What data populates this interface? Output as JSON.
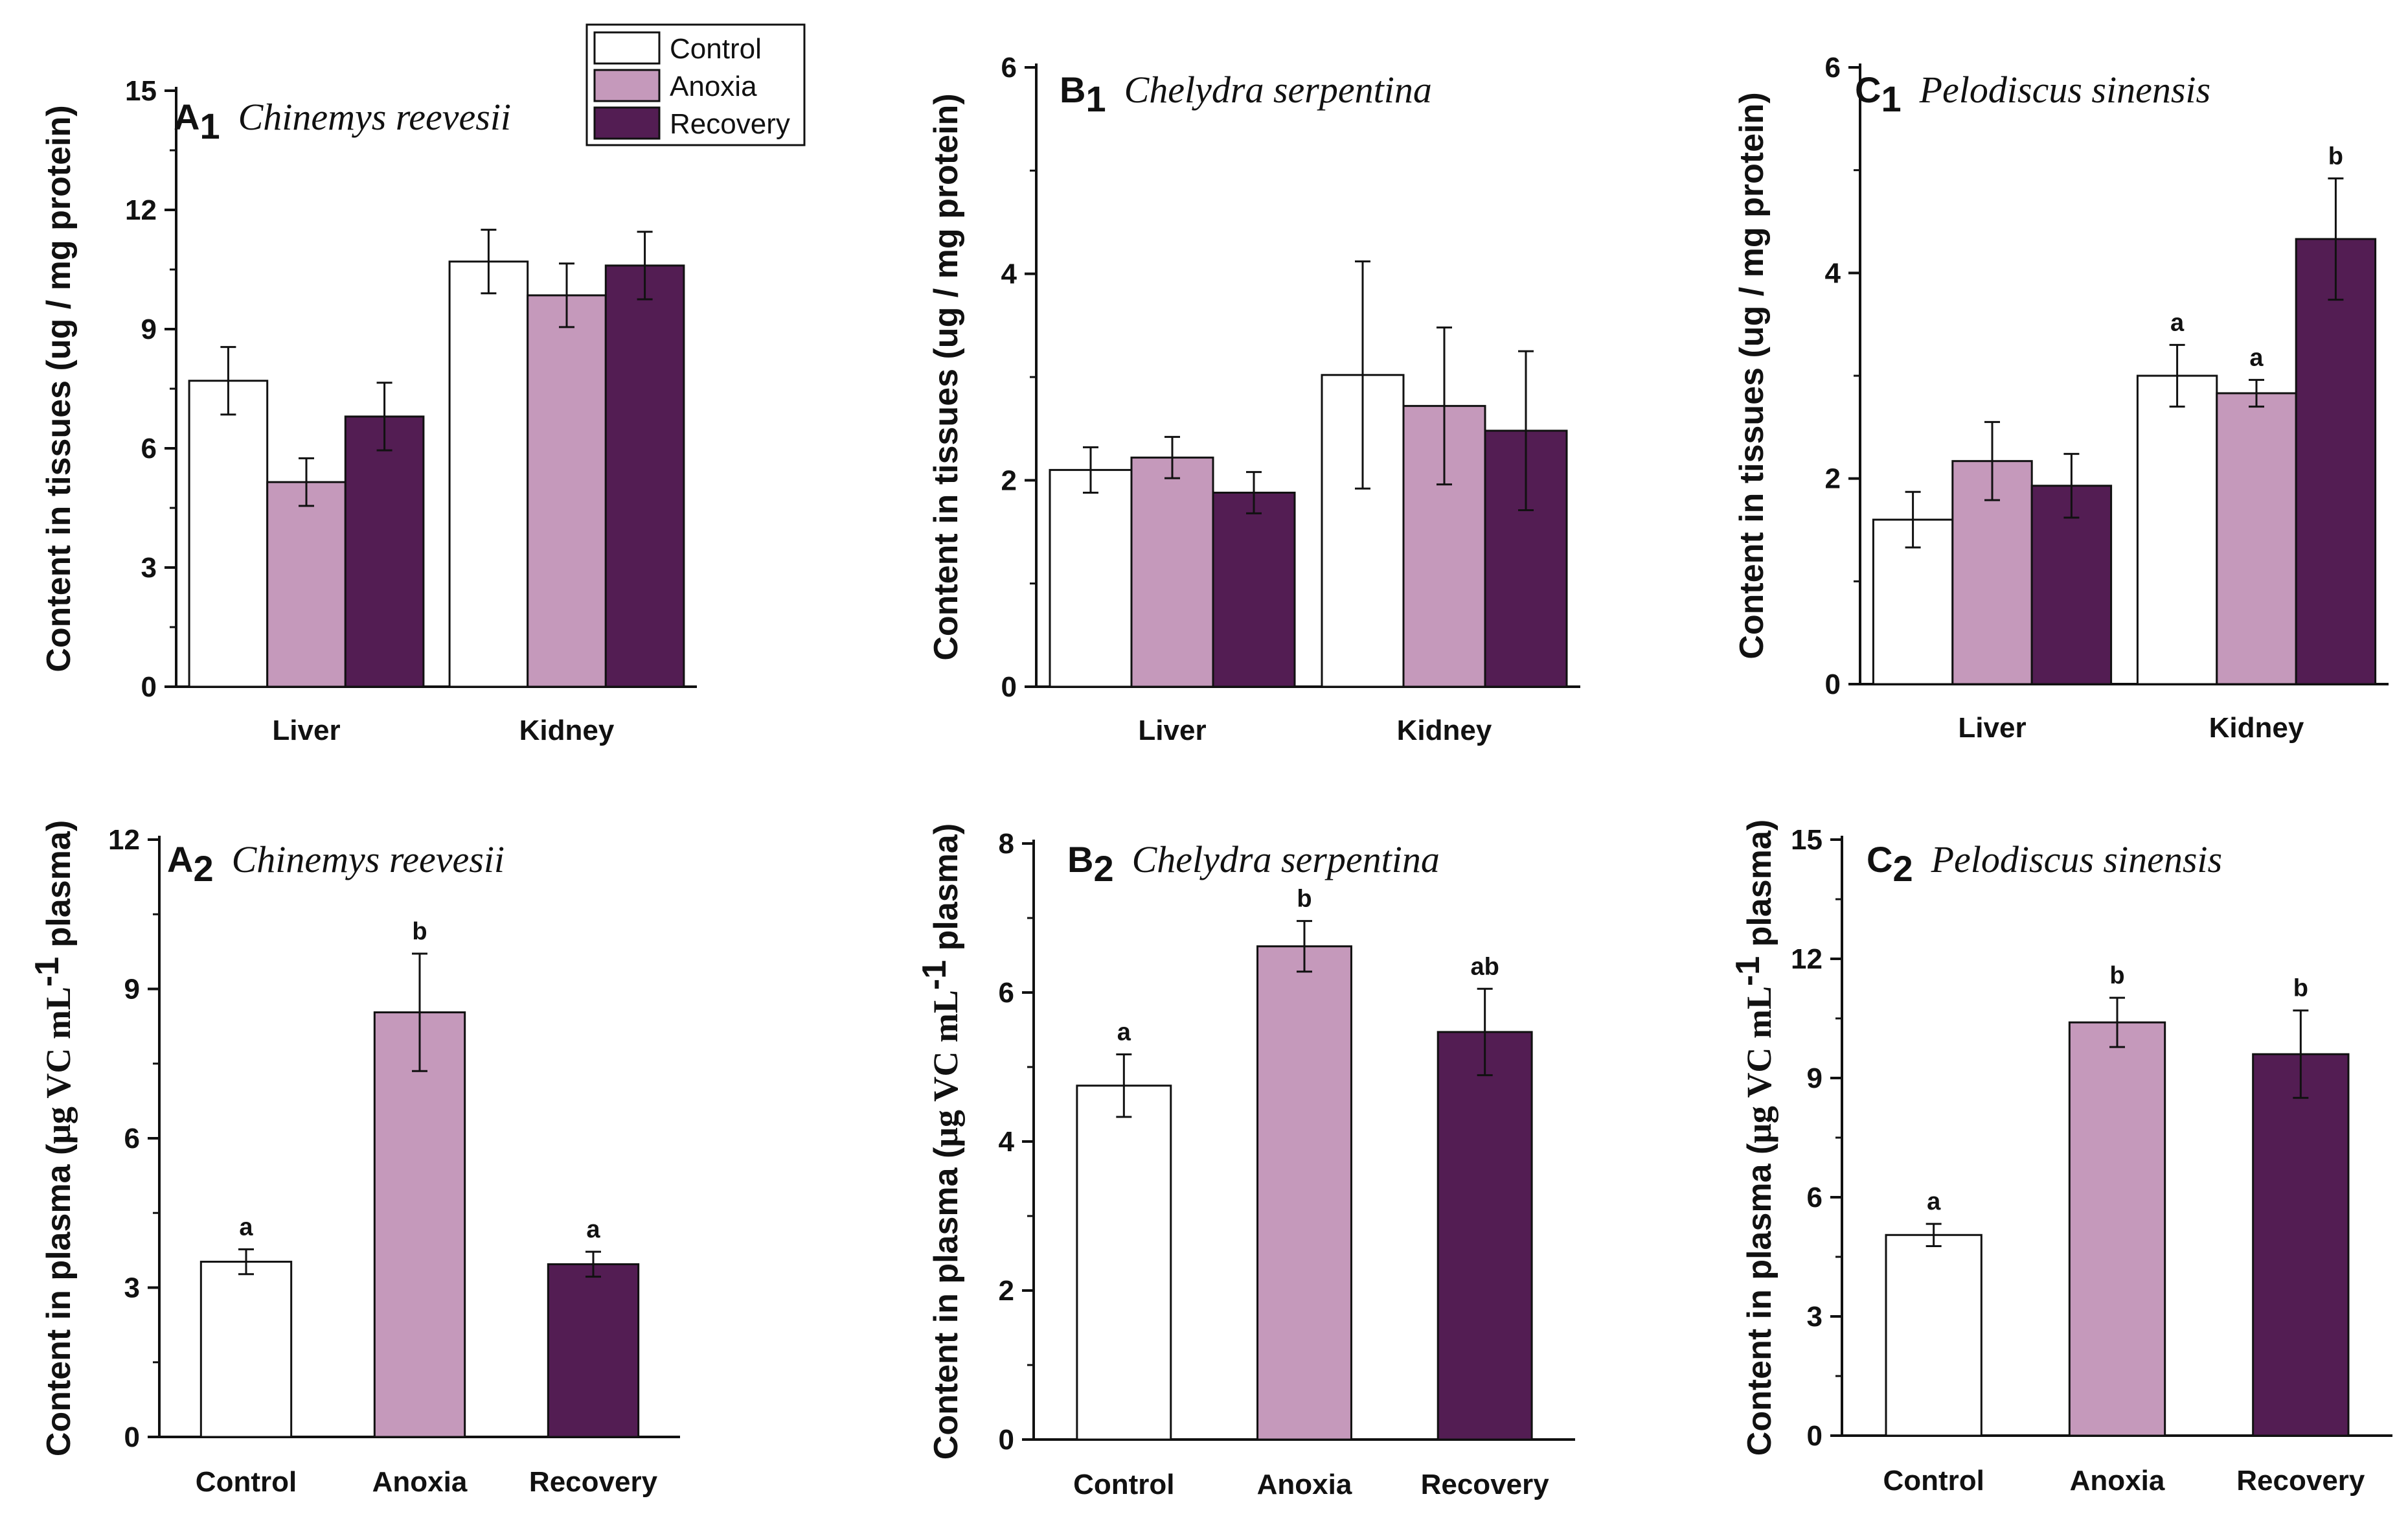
{
  "colors": {
    "control": "#ffffff",
    "anoxia": "#c599bb",
    "recovery": "#531d53",
    "axis": "#111111"
  },
  "legend": {
    "items": [
      {
        "label": "Control",
        "color": "#ffffff"
      },
      {
        "label": "Anoxia",
        "color": "#c599bb"
      },
      {
        "label": "Recovery",
        "color": "#531d53"
      }
    ]
  },
  "chart_data": [
    {
      "id": "A1",
      "type": "bar",
      "panel": "A",
      "sub": "1",
      "species": "Chinemys reevesii",
      "ylabel": "Content in tissues (ug / mg protein)",
      "ylim": [
        0,
        15
      ],
      "yticks": [
        0,
        3,
        6,
        9,
        12,
        15
      ],
      "categories": [
        "Liver",
        "Kidney"
      ],
      "series": [
        {
          "name": "Control",
          "values": [
            7.7,
            10.7
          ],
          "errors": [
            0.85,
            0.8
          ],
          "sig": [
            "",
            ""
          ]
        },
        {
          "name": "Anoxia",
          "values": [
            5.15,
            9.85
          ],
          "errors": [
            0.6,
            0.8
          ],
          "sig": [
            "",
            ""
          ]
        },
        {
          "name": "Recovery",
          "values": [
            6.8,
            10.6
          ],
          "errors": [
            0.85,
            0.85
          ],
          "sig": [
            "",
            ""
          ]
        }
      ]
    },
    {
      "id": "B1",
      "type": "bar",
      "panel": "B",
      "sub": "1",
      "species": "Chelydra serpentina",
      "ylabel": "Content in tissues (ug / mg protein)",
      "ylim": [
        0,
        6
      ],
      "yticks": [
        0,
        2,
        4,
        6
      ],
      "categories": [
        "Liver",
        "Kidney"
      ],
      "series": [
        {
          "name": "Control",
          "values": [
            2.1,
            3.02
          ],
          "errors": [
            0.22,
            1.1
          ],
          "sig": [
            "",
            ""
          ]
        },
        {
          "name": "Anoxia",
          "values": [
            2.22,
            2.72
          ],
          "errors": [
            0.2,
            0.76
          ],
          "sig": [
            "",
            ""
          ]
        },
        {
          "name": "Recovery",
          "values": [
            1.88,
            2.48
          ],
          "errors": [
            0.2,
            0.77
          ],
          "sig": [
            "",
            ""
          ]
        }
      ]
    },
    {
      "id": "C1",
      "type": "bar",
      "panel": "C",
      "sub": "1",
      "species": "Pelodiscus sinensis",
      "ylabel": "Content in tissues (ug / mg protein)",
      "ylim": [
        0,
        6
      ],
      "yticks": [
        0,
        2,
        4,
        6
      ],
      "categories": [
        "Liver",
        "Kidney"
      ],
      "series": [
        {
          "name": "Control",
          "values": [
            1.6,
            3.0
          ],
          "errors": [
            0.27,
            0.3
          ],
          "sig": [
            "",
            "a"
          ]
        },
        {
          "name": "Anoxia",
          "values": [
            2.17,
            2.83
          ],
          "errors": [
            0.38,
            0.13
          ],
          "sig": [
            "",
            "a"
          ]
        },
        {
          "name": "Recovery",
          "values": [
            1.93,
            4.33
          ],
          "errors": [
            0.31,
            0.59
          ],
          "sig": [
            "",
            "b"
          ]
        }
      ]
    },
    {
      "id": "A2",
      "type": "bar",
      "panel": "A",
      "sub": "2",
      "species": "Chinemys reevesii",
      "ylabel_main": "Content in plasma (",
      "ylabel_unit": "μg VC mL",
      "ylabel_sup": "-1",
      "ylabel_end": " plasma)",
      "ylim": [
        0,
        12
      ],
      "yticks": [
        0,
        3,
        6,
        9,
        12
      ],
      "categories": [
        "Control",
        "Anoxia",
        "Recovery"
      ],
      "values": [
        3.52,
        8.53,
        3.47
      ],
      "errors": [
        0.25,
        1.18,
        0.25
      ],
      "sig": [
        "a",
        "b",
        "a"
      ]
    },
    {
      "id": "B2",
      "type": "bar",
      "panel": "B",
      "sub": "2",
      "species": "Chelydra serpentina",
      "ylabel_main": "Content in plasma (",
      "ylabel_unit": "μg VC mL",
      "ylabel_sup": "-1",
      "ylabel_end": " plasma)",
      "ylim": [
        0,
        8
      ],
      "yticks": [
        0,
        2,
        4,
        6,
        8
      ],
      "categories": [
        "Control",
        "Anoxia",
        "Recovery"
      ],
      "values": [
        4.75,
        6.62,
        5.47
      ],
      "errors": [
        0.42,
        0.34,
        0.58
      ],
      "sig": [
        "a",
        "b",
        "ab"
      ]
    },
    {
      "id": "C2",
      "type": "bar",
      "panel": "C",
      "sub": "2",
      "species": "Pelodiscus sinensis",
      "ylabel_main": "Content in plasma (",
      "ylabel_unit": "μg VC mL",
      "ylabel_sup": "-1",
      "ylabel_end": " plasma)",
      "ylim": [
        0,
        15
      ],
      "yticks": [
        0,
        3,
        6,
        9,
        12,
        15
      ],
      "categories": [
        "Control",
        "Anoxia",
        "Recovery"
      ],
      "values": [
        5.05,
        10.4,
        9.6
      ],
      "errors": [
        0.28,
        0.62,
        1.1
      ],
      "sig": [
        "a",
        "b",
        "b"
      ]
    }
  ]
}
